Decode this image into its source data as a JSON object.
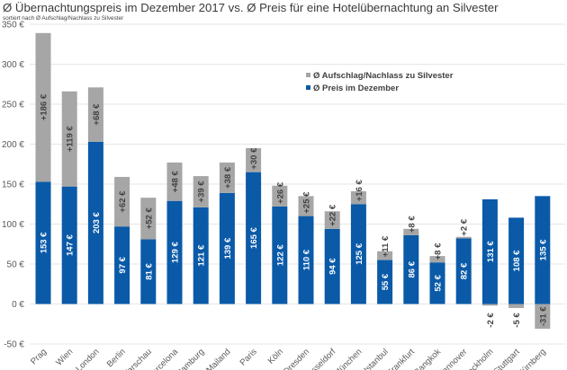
{
  "title": "Ø Übernachtungspreis im Dezember 2017 vs. Ø Preis für eine Hotelübernachtung an Silvester",
  "subtitle": "sortiert nach Ø Aufschlag/Nachlass zu Silvester",
  "colors": {
    "december": "#0a5aa8",
    "delta": "#a6a6a6",
    "grid": "#e6e6e6"
  },
  "chart_data": {
    "type": "bar",
    "stacked": true,
    "title": "Ø Übernachtungspreis im Dezember 2017 vs. Ø Preis für eine Hotelübernachtung an Silvester",
    "subtitle": "sortiert nach Ø Aufschlag/Nachlass zu Silvester",
    "xlabel": "",
    "ylabel": "",
    "ylim": [
      -50,
      350
    ],
    "yticks": [
      -50,
      0,
      50,
      100,
      150,
      200,
      250,
      300,
      350
    ],
    "ytick_labels": [
      "-50 €",
      "0 €",
      "50 €",
      "100 €",
      "150 €",
      "200 €",
      "250 €",
      "300 €",
      "350 €"
    ],
    "grid": true,
    "legend_position": "top-right",
    "categories": [
      "Prag",
      "Wien",
      "London",
      "Berlin",
      "Warschau",
      "Barcelona",
      "Hamburg",
      "Mailand",
      "Paris",
      "Köln",
      "Dresden",
      "Düsseldorf",
      "München",
      "Istanbul",
      "Frankfurt",
      "Bangkok",
      "Hannover",
      "Stockholm",
      "Stuttgart",
      "Nürnberg"
    ],
    "series": [
      {
        "name": "Ø Preis im Dezember",
        "values": [
          153,
          147,
          203,
          97,
          81,
          129,
          121,
          139,
          165,
          122,
          110,
          94,
          125,
          55,
          86,
          52,
          82,
          131,
          108,
          135
        ],
        "labels": [
          "153 €",
          "147 €",
          "203 €",
          "97 €",
          "81 €",
          "129 €",
          "121 €",
          "139 €",
          "165 €",
          "122 €",
          "110 €",
          "94 €",
          "125 €",
          "55 €",
          "86 €",
          "52 €",
          "82 €",
          "131 €",
          "108 €",
          "135 €"
        ]
      },
      {
        "name": "Ø Aufschlag/Nachlass zu Silvester",
        "values": [
          186,
          119,
          68,
          62,
          52,
          48,
          39,
          38,
          30,
          26,
          25,
          22,
          16,
          11,
          8,
          8,
          2,
          -2,
          -5,
          -31
        ],
        "labels": [
          "+186 €",
          "+119 €",
          "+68 €",
          "+62 €",
          "+52 €",
          "+48 €",
          "+39 €",
          "+38 €",
          "+30 €",
          "+26 €",
          "+25 €",
          "+22 €",
          "+16 €",
          "+11 €",
          "+8 €",
          "+8 €",
          "+2 €",
          "-2 €",
          "-5 €",
          "-31 €"
        ]
      }
    ]
  }
}
